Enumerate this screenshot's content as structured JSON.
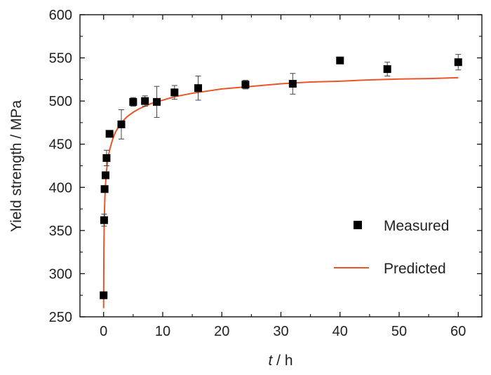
{
  "chart_data": {
    "type": "scatter",
    "xlabel_var": "t",
    "xlabel_unit": " / h",
    "ylabel": "Yield strength / MPa",
    "xlim": [
      -4,
      64
    ],
    "ylim": [
      250,
      600
    ],
    "xticks": [
      0,
      10,
      20,
      30,
      40,
      50,
      60
    ],
    "yticks": [
      250,
      300,
      350,
      400,
      450,
      500,
      550,
      600
    ],
    "grid": false,
    "legend_position": "lower-right",
    "series": [
      {
        "name": "Measured",
        "kind": "marker",
        "marker": "square",
        "color": "#000000",
        "points": [
          {
            "x": 0,
            "y": 275,
            "err": 0
          },
          {
            "x": 0.083,
            "y": 362,
            "err": 7
          },
          {
            "x": 0.167,
            "y": 398,
            "err": 0
          },
          {
            "x": 0.333,
            "y": 414,
            "err": 0
          },
          {
            "x": 0.5,
            "y": 434,
            "err": 9
          },
          {
            "x": 1,
            "y": 462,
            "err": 0
          },
          {
            "x": 3,
            "y": 473,
            "err": 17
          },
          {
            "x": 5,
            "y": 499,
            "err": 5
          },
          {
            "x": 7,
            "y": 500,
            "err": 6
          },
          {
            "x": 9,
            "y": 499,
            "err": 18
          },
          {
            "x": 12,
            "y": 510,
            "err": 8
          },
          {
            "x": 16,
            "y": 515,
            "err": 14
          },
          {
            "x": 24,
            "y": 519,
            "err": 5
          },
          {
            "x": 32,
            "y": 520,
            "err": 12
          },
          {
            "x": 40,
            "y": 547,
            "err": 0
          },
          {
            "x": 48,
            "y": 537,
            "err": 8
          },
          {
            "x": 60,
            "y": 545,
            "err": 9
          }
        ]
      },
      {
        "name": "Predicted",
        "kind": "line",
        "color": "#e8562a",
        "points": [
          {
            "x": 0,
            "y": 260
          },
          {
            "x": 0.05,
            "y": 330
          },
          {
            "x": 0.1,
            "y": 357
          },
          {
            "x": 0.2,
            "y": 385
          },
          {
            "x": 0.3,
            "y": 401
          },
          {
            "x": 0.5,
            "y": 420
          },
          {
            "x": 0.75,
            "y": 434
          },
          {
            "x": 1,
            "y": 443
          },
          {
            "x": 1.5,
            "y": 455
          },
          {
            "x": 2,
            "y": 464
          },
          {
            "x": 3,
            "y": 475
          },
          {
            "x": 4,
            "y": 482
          },
          {
            "x": 5,
            "y": 487
          },
          {
            "x": 6,
            "y": 491
          },
          {
            "x": 8,
            "y": 497
          },
          {
            "x": 10,
            "y": 501
          },
          {
            "x": 12,
            "y": 505
          },
          {
            "x": 15,
            "y": 509
          },
          {
            "x": 20,
            "y": 514
          },
          {
            "x": 25,
            "y": 517
          },
          {
            "x": 30,
            "y": 520
          },
          {
            "x": 35,
            "y": 522
          },
          {
            "x": 40,
            "y": 523
          },
          {
            "x": 45,
            "y": 524.5
          },
          {
            "x": 50,
            "y": 525.5
          },
          {
            "x": 55,
            "y": 526
          },
          {
            "x": 60,
            "y": 527
          }
        ]
      }
    ]
  }
}
